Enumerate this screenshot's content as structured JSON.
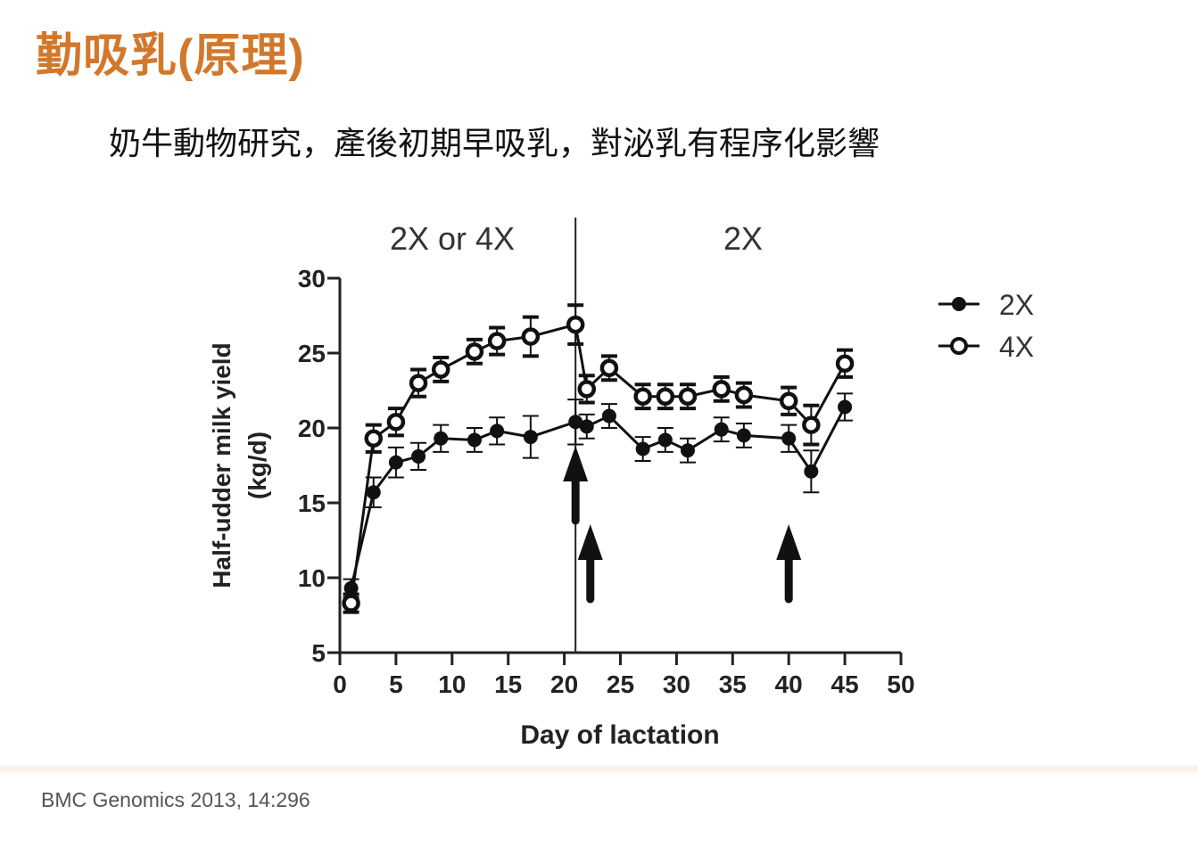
{
  "slide": {
    "title": "勤吸乳(原理)",
    "subtitle": "奶牛動物研究，產後初期早吸乳，對泌乳有程序化影響",
    "footer": "BMC Genomics 2013, 14:296"
  },
  "chart_data": {
    "type": "line",
    "xlabel": "Day of lactation",
    "ylabel": "Half-udder milk yield",
    "ylabel_unit": "(kg/d)",
    "xlim": [
      0,
      50
    ],
    "ylim": [
      5,
      30
    ],
    "xticks": [
      0,
      5,
      10,
      15,
      20,
      25,
      30,
      35,
      40,
      45,
      50
    ],
    "yticks": [
      5,
      10,
      15,
      20,
      25,
      30
    ],
    "grid": false,
    "legend_position": "top-right",
    "phase_divider_day": 21,
    "phase_labels": [
      "2X or 4X",
      "2X"
    ],
    "arrow_days": [
      21,
      22,
      40
    ],
    "series": [
      {
        "name": "2X",
        "marker": "filled-circle",
        "x": [
          1,
          3,
          5,
          7,
          9,
          12,
          14,
          17,
          21,
          22,
          24,
          27,
          29,
          31,
          34,
          36,
          40,
          42,
          45
        ],
        "y": [
          9.3,
          15.7,
          17.7,
          18.1,
          19.3,
          19.2,
          19.8,
          19.4,
          20.4,
          20.1,
          20.8,
          18.6,
          19.2,
          18.5,
          19.9,
          19.5,
          19.3,
          17.1,
          21.4
        ],
        "err": [
          0.6,
          1.0,
          1.0,
          0.9,
          0.9,
          0.8,
          0.9,
          1.4,
          1.5,
          0.8,
          0.8,
          0.8,
          0.8,
          0.8,
          0.8,
          0.8,
          0.9,
          1.4,
          0.9
        ]
      },
      {
        "name": "4X",
        "marker": "open-circle",
        "x": [
          1,
          3,
          5,
          7,
          9,
          12,
          14,
          17,
          21,
          22,
          24,
          27,
          29,
          31,
          34,
          36,
          40,
          42,
          45
        ],
        "y": [
          8.3,
          19.3,
          20.4,
          23.0,
          23.9,
          25.1,
          25.8,
          26.1,
          26.9,
          22.6,
          24.0,
          22.1,
          22.1,
          22.1,
          22.6,
          22.2,
          21.8,
          20.2,
          24.3
        ],
        "err": [
          0.6,
          0.9,
          0.9,
          0.9,
          0.8,
          0.8,
          0.9,
          1.3,
          1.3,
          0.9,
          0.8,
          0.8,
          0.8,
          0.8,
          0.8,
          0.8,
          0.9,
          1.3,
          0.9
        ]
      }
    ]
  }
}
